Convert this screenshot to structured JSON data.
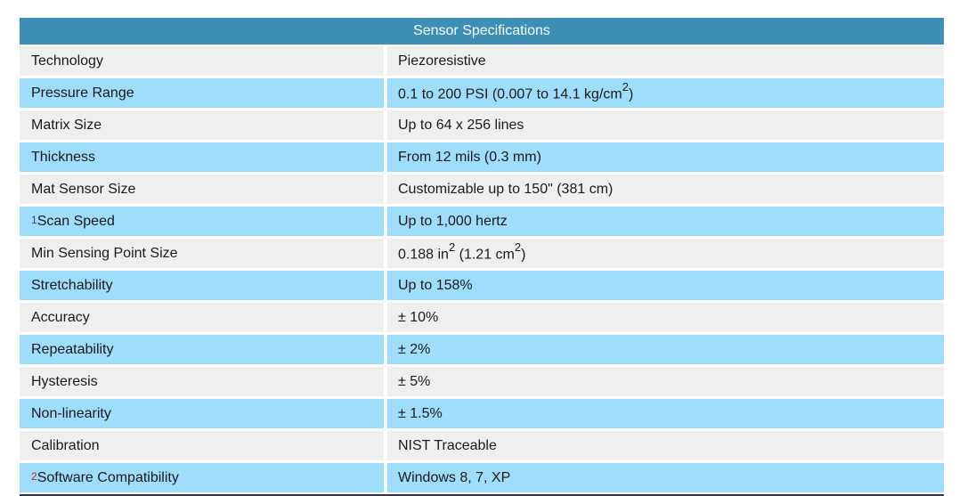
{
  "table": {
    "title": "Sensor Specifications",
    "colors": {
      "header_bg": "#3E8FB5",
      "header_text": "#FFFFFF",
      "row_light": "#EFEFEF",
      "row_blue": "#9EDDFB",
      "text": "#1A1A1A",
      "bottom_border": "#33334A"
    },
    "rows": [
      {
        "label": "Technology",
        "value_parts": [
          {
            "t": "Piezoresistive"
          }
        ]
      },
      {
        "label": "Pressure Range",
        "value_parts": [
          {
            "t": "0.1 to 200 PSI (0.007 to 14.1 kg/cm"
          },
          {
            "t": "2",
            "sup": true
          },
          {
            "t": ")"
          }
        ]
      },
      {
        "label": "Matrix Size",
        "value_parts": [
          {
            "t": "Up to 64 x 256 lines"
          }
        ]
      },
      {
        "label": "Thickness",
        "value_parts": [
          {
            "t": "From 12 mils (0.3 mm)"
          }
        ]
      },
      {
        "label": "Mat Sensor Size",
        "value_parts": [
          {
            "t": "Customizable up to 150\" (381 cm)"
          }
        ]
      },
      {
        "label": "Scan Speed",
        "footnote": {
          "mark": "1",
          "color": "#3939B8"
        },
        "value_parts": [
          {
            "t": "Up to 1,000 hertz"
          }
        ]
      },
      {
        "label": "Min Sensing Point Size",
        "value_parts": [
          {
            "t": "0.188 in"
          },
          {
            "t": "2",
            "sup": true
          },
          {
            "t": " (1.21 cm"
          },
          {
            "t": "2",
            "sup": true
          },
          {
            "t": ")"
          }
        ]
      },
      {
        "label": "Stretchability",
        "value_parts": [
          {
            "t": "Up to 158%"
          }
        ]
      },
      {
        "label": "Accuracy",
        "value_parts": [
          {
            "t": "± 10%"
          }
        ]
      },
      {
        "label": "Repeatability",
        "value_parts": [
          {
            "t": "± 2%"
          }
        ]
      },
      {
        "label": "Hysteresis",
        "value_parts": [
          {
            "t": "± 5%"
          }
        ]
      },
      {
        "label": "Non-linearity",
        "value_parts": [
          {
            "t": "± 1.5%"
          }
        ]
      },
      {
        "label": "Calibration",
        "value_parts": [
          {
            "t": "NIST Traceable"
          }
        ]
      },
      {
        "label": "Software Compatibility",
        "footnote": {
          "mark": "2",
          "color": "#CB2026"
        },
        "value_parts": [
          {
            "t": "Windows 8, 7, XP"
          }
        ]
      }
    ]
  }
}
